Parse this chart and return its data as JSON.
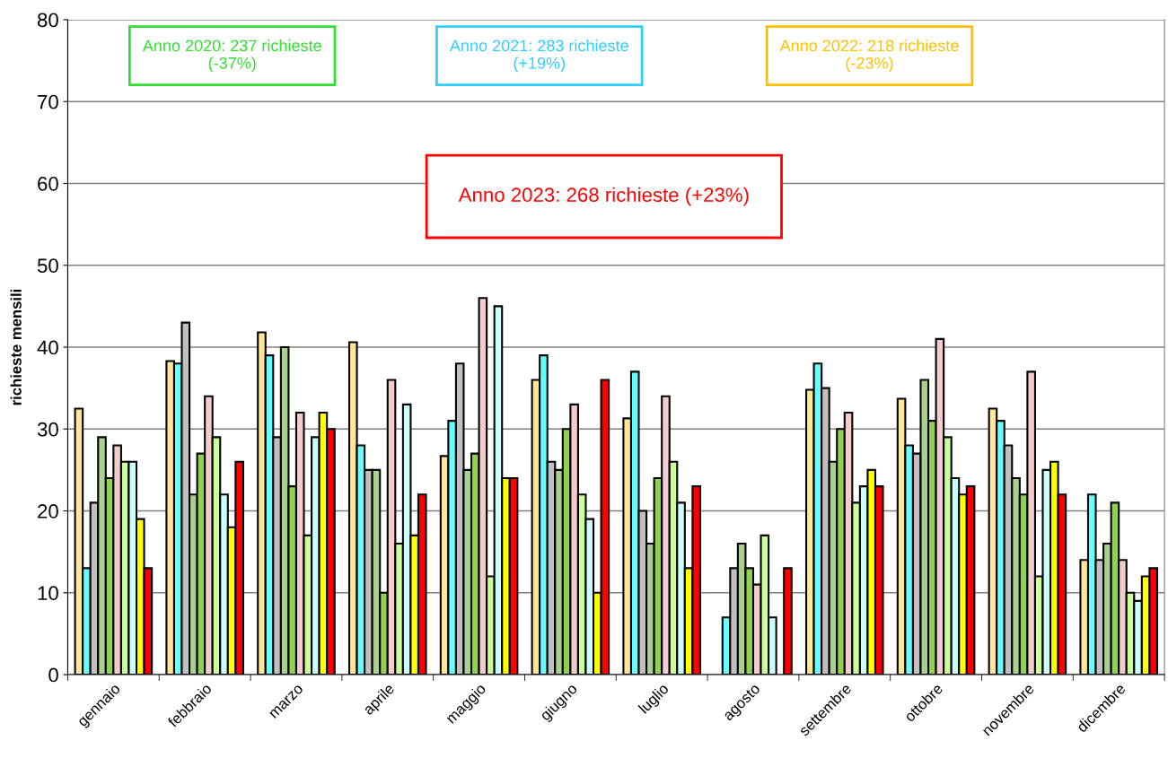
{
  "chart_data": {
    "type": "bar",
    "ylabel": "richieste mensili",
    "categories": [
      "gennaio",
      "febbraio",
      "marzo",
      "aprile",
      "maggio",
      "giugno",
      "luglio",
      "agosto",
      "settembre",
      "ottobre",
      "novembre",
      "dicembre"
    ],
    "series": [
      {
        "color": "#ffe699",
        "values": [
          32.5,
          38.3,
          41.8,
          40.6,
          26.7,
          36,
          31.3,
          null,
          34.8,
          33.7,
          32.5,
          14
        ]
      },
      {
        "color": "#66ffff",
        "values": [
          13,
          38,
          39,
          28,
          31,
          39,
          37,
          7,
          38,
          28,
          31,
          22
        ]
      },
      {
        "color": "#c0c0c0",
        "values": [
          21,
          43,
          29,
          25,
          38,
          26,
          20,
          13,
          35,
          27,
          28,
          14
        ]
      },
      {
        "color": "#a9d18e",
        "values": [
          29,
          22,
          40,
          25,
          25,
          25,
          16,
          16,
          26,
          36,
          24,
          16
        ]
      },
      {
        "color": "#92d050",
        "values": [
          24,
          27,
          23,
          10,
          27,
          30,
          24,
          13,
          30,
          31,
          22,
          21
        ]
      },
      {
        "color": "#f4cccc",
        "values": [
          28,
          34,
          32,
          36,
          46,
          33,
          34,
          11,
          32,
          41,
          37,
          14
        ]
      },
      {
        "color": "#ccff99",
        "values": [
          26,
          29,
          17,
          16,
          12,
          22,
          26,
          17,
          21,
          29,
          12,
          10
        ]
      },
      {
        "color": "#ccffff",
        "values": [
          26,
          22,
          29,
          33,
          45,
          19,
          21,
          7,
          23,
          24,
          25,
          9
        ]
      },
      {
        "color": "#ffff00",
        "values": [
          19,
          18,
          32,
          17,
          24,
          10,
          13,
          null,
          25,
          22,
          26,
          12
        ]
      },
      {
        "color": "#ff0000",
        "values": [
          13,
          26,
          30,
          22,
          24,
          36,
          23,
          13,
          23,
          23,
          22,
          13
        ]
      }
    ],
    "ylim": [
      0,
      80
    ],
    "yticks": [
      0,
      10,
      20,
      30,
      40,
      50,
      60,
      70,
      80
    ],
    "grid": "y",
    "annotations": [
      "Anno 2020: 237 richieste\n(-37%)",
      "Anno 2021: 283 richieste\n(+19%)",
      "Anno 2022: 218 richieste\n(-23%)",
      "Anno 2023: 268 richieste (+23%)"
    ]
  }
}
